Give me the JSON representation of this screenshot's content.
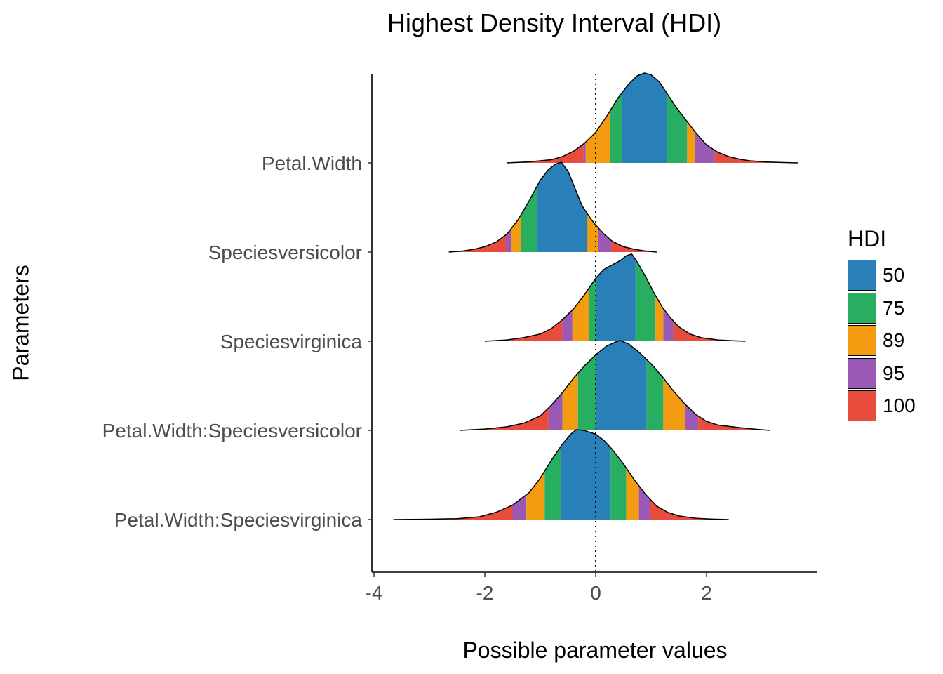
{
  "chart_data": {
    "type": "area",
    "title": "Highest Density Interval (HDI)",
    "xlabel": "Possible parameter values",
    "ylabel": "Parameters",
    "xlim": [
      -4,
      4
    ],
    "xticks": [
      -4,
      -2,
      0,
      2
    ],
    "xtick_labels": [
      "-4",
      "-2",
      "0",
      "2"
    ],
    "reference_line_x": 0,
    "legend_title": "HDI",
    "legend_position": "right",
    "hdi_levels": [
      {
        "label": "50",
        "color": "#2980b9"
      },
      {
        "label": "75",
        "color": "#27ae60"
      },
      {
        "label": "89",
        "color": "#f39c12"
      },
      {
        "label": "95",
        "color": "#9b59b6"
      },
      {
        "label": "100",
        "color": "#e74c3c"
      }
    ],
    "parameters": [
      {
        "name": "Petal.Width",
        "min": -1.6,
        "max": 3.65,
        "hdi": {
          "50": [
            0.48,
            1.28
          ],
          "75": [
            0.26,
            1.65
          ],
          "89": [
            -0.18,
            1.79
          ],
          "95": [
            -0.22,
            2.15
          ]
        },
        "density": [
          [
            -1.6,
            0.0
          ],
          [
            -1.2,
            0.012
          ],
          [
            -0.8,
            0.035
          ],
          [
            -0.6,
            0.07
          ],
          [
            -0.4,
            0.13
          ],
          [
            -0.2,
            0.22
          ],
          [
            0.0,
            0.34
          ],
          [
            0.2,
            0.52
          ],
          [
            0.4,
            0.72
          ],
          [
            0.6,
            0.88
          ],
          [
            0.75,
            0.97
          ],
          [
            0.88,
            1.0
          ],
          [
            1.0,
            0.98
          ],
          [
            1.15,
            0.9
          ],
          [
            1.3,
            0.76
          ],
          [
            1.45,
            0.62
          ],
          [
            1.6,
            0.5
          ],
          [
            1.8,
            0.34
          ],
          [
            2.0,
            0.2
          ],
          [
            2.2,
            0.12
          ],
          [
            2.4,
            0.07
          ],
          [
            2.6,
            0.04
          ],
          [
            2.8,
            0.022
          ],
          [
            3.1,
            0.01
          ],
          [
            3.4,
            0.004
          ],
          [
            3.65,
            0.0
          ]
        ]
      },
      {
        "name": "Speciesversicolor",
        "min": -2.65,
        "max": 1.1,
        "hdi": {
          "50": [
            -1.05,
            0.0
          ],
          "75": [
            -1.35,
            -0.15
          ],
          "89": [
            -1.52,
            0.05
          ],
          "95": [
            -1.62,
            0.28
          ]
        },
        "density": [
          [
            -2.65,
            0.0
          ],
          [
            -2.4,
            0.012
          ],
          [
            -2.2,
            0.03
          ],
          [
            -2.0,
            0.06
          ],
          [
            -1.8,
            0.11
          ],
          [
            -1.6,
            0.2
          ],
          [
            -1.4,
            0.36
          ],
          [
            -1.2,
            0.57
          ],
          [
            -1.0,
            0.8
          ],
          [
            -0.85,
            0.92
          ],
          [
            -0.72,
            0.98
          ],
          [
            -0.62,
            1.0
          ],
          [
            -0.5,
            0.9
          ],
          [
            -0.38,
            0.72
          ],
          [
            -0.25,
            0.52
          ],
          [
            -0.1,
            0.38
          ],
          [
            0.0,
            0.3
          ],
          [
            0.15,
            0.2
          ],
          [
            0.3,
            0.12
          ],
          [
            0.5,
            0.06
          ],
          [
            0.7,
            0.03
          ],
          [
            0.9,
            0.012
          ],
          [
            1.1,
            0.0
          ]
        ]
      },
      {
        "name": "Speciesvirginica",
        "min": -2.0,
        "max": 2.7,
        "hdi": {
          "50": [
            0.0,
            0.72
          ],
          "75": [
            -0.12,
            1.08
          ],
          "89": [
            -0.42,
            1.22
          ],
          "95": [
            -0.6,
            1.4
          ]
        },
        "density": [
          [
            -2.0,
            0.0
          ],
          [
            -1.6,
            0.015
          ],
          [
            -1.3,
            0.04
          ],
          [
            -1.0,
            0.08
          ],
          [
            -0.8,
            0.14
          ],
          [
            -0.6,
            0.24
          ],
          [
            -0.4,
            0.36
          ],
          [
            -0.2,
            0.52
          ],
          [
            0.0,
            0.7
          ],
          [
            0.15,
            0.8
          ],
          [
            0.3,
            0.85
          ],
          [
            0.45,
            0.9
          ],
          [
            0.55,
            0.95
          ],
          [
            0.65,
            0.97
          ],
          [
            0.75,
            0.88
          ],
          [
            0.9,
            0.72
          ],
          [
            1.05,
            0.54
          ],
          [
            1.2,
            0.38
          ],
          [
            1.35,
            0.26
          ],
          [
            1.5,
            0.16
          ],
          [
            1.7,
            0.08
          ],
          [
            1.9,
            0.04
          ],
          [
            2.2,
            0.015
          ],
          [
            2.5,
            0.005
          ],
          [
            2.7,
            0.0
          ]
        ]
      },
      {
        "name": "Petal.Width:Speciesversicolor",
        "min": -2.45,
        "max": 3.15,
        "hdi": {
          "50": [
            0.0,
            0.92
          ],
          "75": [
            -0.32,
            1.22
          ],
          "89": [
            -0.6,
            1.62
          ],
          "95": [
            -0.85,
            1.85
          ]
        },
        "density": [
          [
            -2.45,
            0.0
          ],
          [
            -2.0,
            0.015
          ],
          [
            -1.6,
            0.04
          ],
          [
            -1.3,
            0.08
          ],
          [
            -1.0,
            0.16
          ],
          [
            -0.8,
            0.28
          ],
          [
            -0.6,
            0.42
          ],
          [
            -0.4,
            0.58
          ],
          [
            -0.2,
            0.72
          ],
          [
            0.0,
            0.84
          ],
          [
            0.2,
            0.94
          ],
          [
            0.38,
            0.99
          ],
          [
            0.45,
            1.0
          ],
          [
            0.6,
            0.96
          ],
          [
            0.8,
            0.86
          ],
          [
            1.0,
            0.74
          ],
          [
            1.2,
            0.6
          ],
          [
            1.4,
            0.44
          ],
          [
            1.6,
            0.3
          ],
          [
            1.8,
            0.18
          ],
          [
            2.0,
            0.1
          ],
          [
            2.2,
            0.06
          ],
          [
            2.4,
            0.045
          ],
          [
            2.6,
            0.03
          ],
          [
            2.9,
            0.012
          ],
          [
            3.15,
            0.0
          ]
        ]
      },
      {
        "name": "Petal.Width:Speciesvirginica",
        "min": -3.65,
        "max": 2.4,
        "hdi": {
          "50": [
            -0.62,
            0.27
          ],
          "75": [
            -0.92,
            0.55
          ],
          "89": [
            -1.25,
            0.78
          ],
          "95": [
            -1.5,
            0.98
          ]
        },
        "density": [
          [
            -3.65,
            0.0
          ],
          [
            -3.0,
            0.004
          ],
          [
            -2.5,
            0.01
          ],
          [
            -2.1,
            0.03
          ],
          [
            -1.8,
            0.08
          ],
          [
            -1.5,
            0.16
          ],
          [
            -1.2,
            0.3
          ],
          [
            -1.0,
            0.46
          ],
          [
            -0.8,
            0.66
          ],
          [
            -0.6,
            0.84
          ],
          [
            -0.45,
            0.95
          ],
          [
            -0.35,
            1.0
          ],
          [
            -0.2,
            0.99
          ],
          [
            0.0,
            0.95
          ],
          [
            0.15,
            0.88
          ],
          [
            0.3,
            0.78
          ],
          [
            0.5,
            0.62
          ],
          [
            0.7,
            0.44
          ],
          [
            0.9,
            0.28
          ],
          [
            1.1,
            0.15
          ],
          [
            1.3,
            0.08
          ],
          [
            1.5,
            0.04
          ],
          [
            1.8,
            0.015
          ],
          [
            2.1,
            0.005
          ],
          [
            2.4,
            0.0
          ]
        ]
      }
    ]
  }
}
